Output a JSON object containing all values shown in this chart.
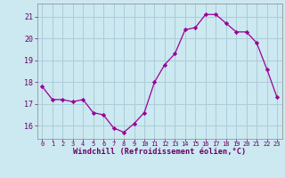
{
  "x": [
    0,
    1,
    2,
    3,
    4,
    5,
    6,
    7,
    8,
    9,
    10,
    11,
    12,
    13,
    14,
    15,
    16,
    17,
    18,
    19,
    20,
    21,
    22,
    23
  ],
  "y": [
    17.8,
    17.2,
    17.2,
    17.1,
    17.2,
    16.6,
    16.5,
    15.9,
    15.7,
    16.1,
    16.6,
    18.0,
    18.8,
    19.3,
    20.4,
    20.5,
    21.1,
    21.1,
    20.7,
    20.3,
    20.3,
    19.8,
    18.6,
    17.3
  ],
  "line_color": "#990099",
  "marker": "D",
  "marker_size": 2.2,
  "bg_color": "#cce8f0",
  "grid_color": "#aaccd8",
  "xlabel": "Windchill (Refroidissement éolien,°C)",
  "ylabel_ticks": [
    16,
    17,
    18,
    19,
    20,
    21
  ],
  "ylim": [
    15.4,
    21.6
  ],
  "xlim": [
    -0.5,
    23.5
  ],
  "xtick_fontsize": 5.0,
  "ytick_fontsize": 6.0,
  "xlabel_fontsize": 6.2
}
